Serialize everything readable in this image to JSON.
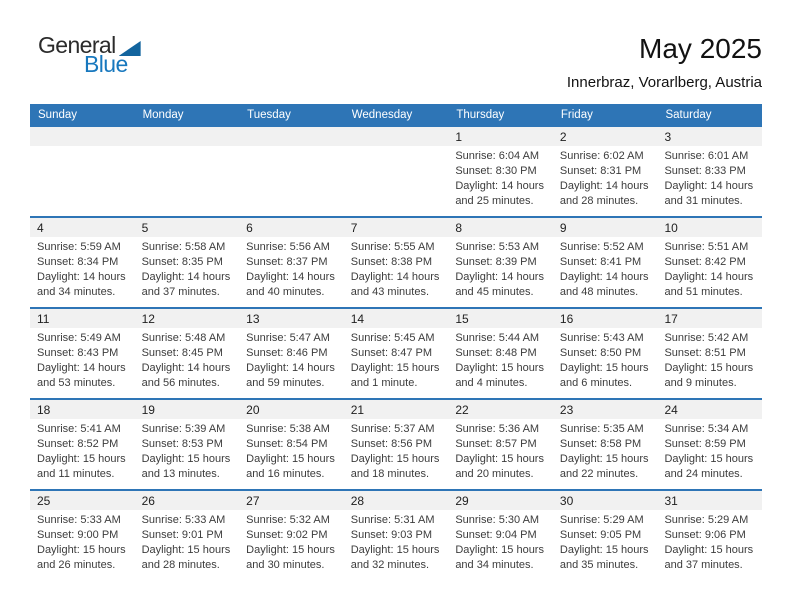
{
  "logo": {
    "part1": "General",
    "part2": "Blue"
  },
  "header": {
    "title": "May 2025",
    "subtitle": "Innerbraz, Vorarlberg, Austria"
  },
  "colors": {
    "accent_blue": "#2e75b6",
    "band_gray": "#f1f1f1",
    "logo_blue": "#1878be",
    "logo_triangle_blue": "#12649e"
  },
  "labels": {
    "sunrise": "Sunrise:",
    "sunset": "Sunset:",
    "daylight": "Daylight:",
    "and": "and"
  },
  "weekdays": [
    "Sunday",
    "Monday",
    "Tuesday",
    "Wednesday",
    "Thursday",
    "Friday",
    "Saturday"
  ],
  "weeks": [
    [
      null,
      null,
      null,
      null,
      {
        "day": "1",
        "sunrise": "6:04 AM",
        "sunset": "8:30 PM",
        "daylight": "14 hours and 25 minutes."
      },
      {
        "day": "2",
        "sunrise": "6:02 AM",
        "sunset": "8:31 PM",
        "daylight": "14 hours and 28 minutes."
      },
      {
        "day": "3",
        "sunrise": "6:01 AM",
        "sunset": "8:33 PM",
        "daylight": "14 hours and 31 minutes."
      }
    ],
    [
      {
        "day": "4",
        "sunrise": "5:59 AM",
        "sunset": "8:34 PM",
        "daylight": "14 hours and 34 minutes."
      },
      {
        "day": "5",
        "sunrise": "5:58 AM",
        "sunset": "8:35 PM",
        "daylight": "14 hours and 37 minutes."
      },
      {
        "day": "6",
        "sunrise": "5:56 AM",
        "sunset": "8:37 PM",
        "daylight": "14 hours and 40 minutes."
      },
      {
        "day": "7",
        "sunrise": "5:55 AM",
        "sunset": "8:38 PM",
        "daylight": "14 hours and 43 minutes."
      },
      {
        "day": "8",
        "sunrise": "5:53 AM",
        "sunset": "8:39 PM",
        "daylight": "14 hours and 45 minutes."
      },
      {
        "day": "9",
        "sunrise": "5:52 AM",
        "sunset": "8:41 PM",
        "daylight": "14 hours and 48 minutes."
      },
      {
        "day": "10",
        "sunrise": "5:51 AM",
        "sunset": "8:42 PM",
        "daylight": "14 hours and 51 minutes."
      }
    ],
    [
      {
        "day": "11",
        "sunrise": "5:49 AM",
        "sunset": "8:43 PM",
        "daylight": "14 hours and 53 minutes."
      },
      {
        "day": "12",
        "sunrise": "5:48 AM",
        "sunset": "8:45 PM",
        "daylight": "14 hours and 56 minutes."
      },
      {
        "day": "13",
        "sunrise": "5:47 AM",
        "sunset": "8:46 PM",
        "daylight": "14 hours and 59 minutes."
      },
      {
        "day": "14",
        "sunrise": "5:45 AM",
        "sunset": "8:47 PM",
        "daylight": "15 hours and 1 minute."
      },
      {
        "day": "15",
        "sunrise": "5:44 AM",
        "sunset": "8:48 PM",
        "daylight": "15 hours and 4 minutes."
      },
      {
        "day": "16",
        "sunrise": "5:43 AM",
        "sunset": "8:50 PM",
        "daylight": "15 hours and 6 minutes."
      },
      {
        "day": "17",
        "sunrise": "5:42 AM",
        "sunset": "8:51 PM",
        "daylight": "15 hours and 9 minutes."
      }
    ],
    [
      {
        "day": "18",
        "sunrise": "5:41 AM",
        "sunset": "8:52 PM",
        "daylight": "15 hours and 11 minutes."
      },
      {
        "day": "19",
        "sunrise": "5:39 AM",
        "sunset": "8:53 PM",
        "daylight": "15 hours and 13 minutes."
      },
      {
        "day": "20",
        "sunrise": "5:38 AM",
        "sunset": "8:54 PM",
        "daylight": "15 hours and 16 minutes."
      },
      {
        "day": "21",
        "sunrise": "5:37 AM",
        "sunset": "8:56 PM",
        "daylight": "15 hours and 18 minutes."
      },
      {
        "day": "22",
        "sunrise": "5:36 AM",
        "sunset": "8:57 PM",
        "daylight": "15 hours and 20 minutes."
      },
      {
        "day": "23",
        "sunrise": "5:35 AM",
        "sunset": "8:58 PM",
        "daylight": "15 hours and 22 minutes."
      },
      {
        "day": "24",
        "sunrise": "5:34 AM",
        "sunset": "8:59 PM",
        "daylight": "15 hours and 24 minutes."
      }
    ],
    [
      {
        "day": "25",
        "sunrise": "5:33 AM",
        "sunset": "9:00 PM",
        "daylight": "15 hours and 26 minutes."
      },
      {
        "day": "26",
        "sunrise": "5:33 AM",
        "sunset": "9:01 PM",
        "daylight": "15 hours and 28 minutes."
      },
      {
        "day": "27",
        "sunrise": "5:32 AM",
        "sunset": "9:02 PM",
        "daylight": "15 hours and 30 minutes."
      },
      {
        "day": "28",
        "sunrise": "5:31 AM",
        "sunset": "9:03 PM",
        "daylight": "15 hours and 32 minutes."
      },
      {
        "day": "29",
        "sunrise": "5:30 AM",
        "sunset": "9:04 PM",
        "daylight": "15 hours and 34 minutes."
      },
      {
        "day": "30",
        "sunrise": "5:29 AM",
        "sunset": "9:05 PM",
        "daylight": "15 hours and 35 minutes."
      },
      {
        "day": "31",
        "sunrise": "5:29 AM",
        "sunset": "9:06 PM",
        "daylight": "15 hours and 37 minutes."
      }
    ]
  ]
}
